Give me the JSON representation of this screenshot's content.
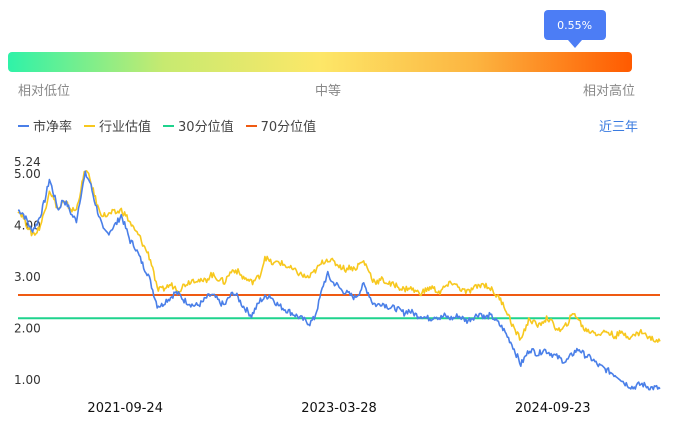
{
  "percentile": {
    "marker_value": 0.55,
    "marker_label": "0.55%",
    "low_label": "相对低位",
    "mid_label": "中等",
    "high_label": "相对高位"
  },
  "legend": [
    {
      "label": "市净率",
      "color": "#4a7fe8"
    },
    {
      "label": "行业估值",
      "color": "#f7c81e"
    },
    {
      "label": "30分位值",
      "color": "#1fd38d"
    },
    {
      "label": "70分位值",
      "color": "#ef5a12"
    }
  ],
  "range_label": "近三年",
  "chart_data": {
    "type": "line",
    "x_ticks": [
      "2021-09-24",
      "2023-03-28",
      "2024-09-23"
    ],
    "x_tick_fractions": [
      0.167,
      0.5,
      0.833
    ],
    "y_ticks": [
      1.0,
      2.0,
      3.0,
      4.0,
      5.0
    ],
    "y_tick_labels": [
      "1.00",
      "2.00",
      "3.00",
      "4.00",
      "5.00"
    ],
    "y_max_label": "5.24",
    "ylim": [
      0.8,
      5.3
    ],
    "series": [
      {
        "name": "市净率",
        "color": "#4a7fe8",
        "values": [
          4.3,
          4.25,
          4.1,
          3.9,
          4.0,
          4.2,
          4.5,
          4.9,
          4.6,
          4.3,
          4.5,
          4.4,
          4.2,
          4.1,
          4.6,
          5.0,
          4.85,
          4.5,
          4.2,
          3.9,
          3.85,
          3.95,
          4.05,
          4.2,
          3.95,
          3.7,
          3.6,
          3.4,
          3.2,
          3.05,
          2.75,
          2.45,
          2.45,
          2.55,
          2.6,
          2.7,
          2.65,
          2.55,
          2.5,
          2.45,
          2.45,
          2.5,
          2.6,
          2.65,
          2.6,
          2.5,
          2.45,
          2.6,
          2.7,
          2.6,
          2.45,
          2.35,
          2.25,
          2.4,
          2.55,
          2.6,
          2.65,
          2.55,
          2.45,
          2.4,
          2.35,
          2.3,
          2.25,
          2.2,
          2.15,
          2.1,
          2.2,
          2.5,
          2.85,
          3.05,
          2.9,
          2.85,
          2.75,
          2.7,
          2.65,
          2.6,
          2.7,
          2.85,
          2.7,
          2.5,
          2.45,
          2.5,
          2.45,
          2.4,
          2.4,
          2.35,
          2.3,
          2.35,
          2.3,
          2.25,
          2.25,
          2.2,
          2.2,
          2.25,
          2.2,
          2.25,
          2.2,
          2.2,
          2.25,
          2.2,
          2.15,
          2.2,
          2.25,
          2.3,
          2.2,
          2.25,
          2.2,
          2.1,
          2.0,
          1.85,
          1.7,
          1.5,
          1.3,
          1.45,
          1.6,
          1.55,
          1.5,
          1.6,
          1.55,
          1.5,
          1.45,
          1.4,
          1.35,
          1.45,
          1.55,
          1.6,
          1.5,
          1.45,
          1.4,
          1.3,
          1.25,
          1.2,
          1.15,
          1.1,
          1.05,
          0.95,
          0.9,
          0.85,
          0.9,
          0.92,
          0.88,
          0.85,
          0.85,
          0.83
        ]
      },
      {
        "name": "行业估值",
        "color": "#f7c81e",
        "values": [
          4.3,
          4.2,
          4.0,
          3.85,
          3.85,
          4.0,
          4.3,
          4.7,
          4.5,
          4.3,
          4.45,
          4.4,
          4.3,
          4.3,
          4.7,
          5.1,
          4.9,
          4.6,
          4.3,
          4.2,
          4.2,
          4.25,
          4.25,
          4.3,
          4.2,
          4.05,
          3.9,
          3.8,
          3.6,
          3.45,
          3.2,
          2.75,
          2.75,
          2.8,
          2.85,
          2.8,
          2.75,
          2.85,
          2.9,
          2.95,
          2.95,
          2.9,
          2.95,
          3.05,
          3.0,
          2.95,
          2.9,
          3.05,
          3.15,
          3.1,
          3.0,
          2.95,
          2.9,
          2.95,
          3.05,
          3.4,
          3.3,
          3.25,
          3.3,
          3.25,
          3.2,
          3.15,
          3.1,
          3.05,
          3.0,
          3.0,
          3.1,
          3.2,
          3.3,
          3.35,
          3.3,
          3.25,
          3.2,
          3.15,
          3.2,
          3.15,
          3.25,
          3.3,
          3.15,
          2.95,
          2.9,
          2.95,
          2.9,
          2.85,
          2.85,
          2.8,
          2.75,
          2.8,
          2.75,
          2.7,
          2.7,
          2.75,
          2.8,
          2.75,
          2.7,
          2.8,
          2.85,
          2.9,
          2.8,
          2.75,
          2.7,
          2.75,
          2.8,
          2.85,
          2.85,
          2.8,
          2.7,
          2.6,
          2.5,
          2.3,
          2.1,
          1.9,
          1.8,
          2.0,
          2.2,
          2.1,
          2.05,
          2.15,
          2.2,
          2.1,
          2.0,
          1.95,
          2.05,
          2.2,
          2.3,
          2.15,
          2.0,
          1.95,
          1.95,
          1.9,
          1.9,
          1.95,
          1.9,
          1.85,
          1.9,
          1.9,
          1.85,
          1.85,
          1.9,
          1.95,
          1.85,
          1.8,
          1.78,
          1.75
        ]
      }
    ],
    "hlines": [
      {
        "name": "30分位值",
        "value": 2.2,
        "color": "#1fd38d"
      },
      {
        "name": "70分位值",
        "value": 2.65,
        "color": "#ef5a12"
      }
    ]
  }
}
